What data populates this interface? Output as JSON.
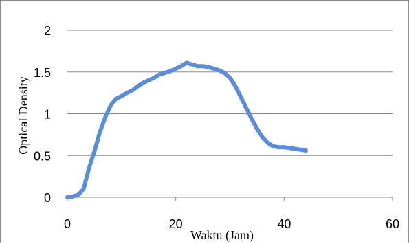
{
  "chart_data": {
    "type": "line",
    "title": "",
    "xlabel": "Waktu (Jam)",
    "ylabel": "Optical Density",
    "xlim": [
      0,
      60
    ],
    "ylim": [
      0,
      2
    ],
    "xticks": [
      0,
      20,
      40,
      60
    ],
    "yticks": [
      0,
      0.5,
      1,
      1.5,
      2
    ],
    "xtick_labels": [
      "0",
      "20",
      "40",
      "60"
    ],
    "ytick_labels": [
      "0",
      "0.5",
      "1",
      "1.5",
      "2"
    ],
    "grid": "horizontal",
    "legend": "none",
    "series": [
      {
        "color": "#5b8ed6",
        "x": [
          0,
          1,
          2,
          3,
          4,
          5,
          6,
          7,
          8,
          9,
          10,
          11,
          12,
          13,
          14,
          15,
          16,
          17,
          18,
          19,
          20,
          21,
          22,
          23,
          24,
          25,
          26,
          27,
          28,
          29,
          30,
          31,
          32,
          33,
          34,
          35,
          36,
          37,
          38,
          39,
          40,
          41,
          42,
          43,
          44
        ],
        "y": [
          0.0,
          0.01,
          0.03,
          0.1,
          0.35,
          0.55,
          0.78,
          0.96,
          1.1,
          1.18,
          1.21,
          1.25,
          1.28,
          1.33,
          1.37,
          1.4,
          1.43,
          1.47,
          1.49,
          1.51,
          1.54,
          1.57,
          1.61,
          1.59,
          1.57,
          1.57,
          1.56,
          1.54,
          1.52,
          1.49,
          1.43,
          1.33,
          1.2,
          1.07,
          0.94,
          0.82,
          0.72,
          0.65,
          0.61,
          0.6,
          0.6,
          0.59,
          0.58,
          0.57,
          0.56
        ]
      }
    ]
  }
}
